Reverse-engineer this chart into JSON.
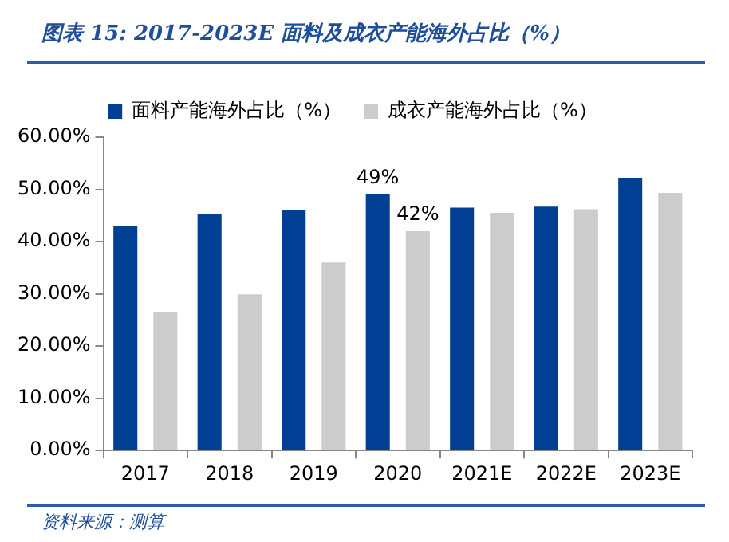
{
  "chart_data": {
    "type": "bar",
    "title": "图表 15:  2017-2023E 面料及成衣产能海外占比（%）",
    "annotations": [
      "资料来源：测算"
    ],
    "categories": [
      "2017",
      "2018",
      "2019",
      "2020",
      "2021E",
      "2022E",
      "2023E"
    ],
    "series": [
      {
        "name": "面料产能海外占比（%）",
        "color": "#003f94",
        "values": [
          43.0,
          45.3,
          46.1,
          49,
          46.5,
          46.7,
          52.2
        ],
        "value_labels": [
          null,
          null,
          null,
          "49%",
          null,
          null,
          null
        ]
      },
      {
        "name": "成衣产能海外占比（%）",
        "color": "#cccccc",
        "values": [
          26.6,
          29.9,
          36.0,
          42,
          45.5,
          46.2,
          49.3
        ],
        "value_labels": [
          null,
          null,
          null,
          "42%",
          null,
          null,
          null
        ]
      }
    ],
    "ylim": [
      0,
      60
    ],
    "yticks": [
      {
        "value": 0,
        "label": "0.00%"
      },
      {
        "value": 10,
        "label": "10.00%"
      },
      {
        "value": 20,
        "label": "20.00%"
      },
      {
        "value": 30,
        "label": "30.00%"
      },
      {
        "value": 40,
        "label": "40.00%"
      },
      {
        "value": 50,
        "label": "50.00%"
      },
      {
        "value": 60,
        "label": "60.00%"
      }
    ],
    "grid": false,
    "legend": "top"
  }
}
